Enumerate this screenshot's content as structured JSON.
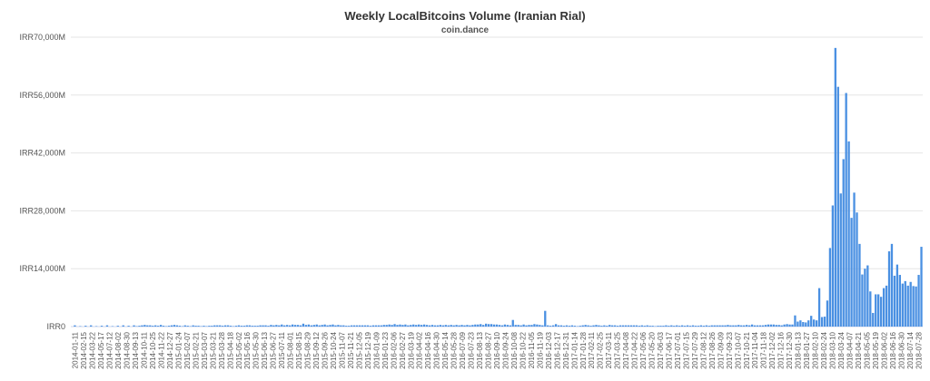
{
  "chart_data": {
    "type": "bar",
    "title": "Weekly LocalBitcoins Volume (Iranian Rial)",
    "subtitle": "coin.dance",
    "xlabel": "",
    "ylabel": "",
    "bar_color": "#4a90e2",
    "y_ticks": [
      "IRR0",
      "IRR14,000M",
      "IRR28,000M",
      "IRR42,000M",
      "IRR56,000M",
      "IRR70,000M"
    ],
    "ylim": [
      0,
      70000
    ],
    "y_units": "IRR millions",
    "x_tick_labels": [
      "2014-01-11",
      "2014-02-15",
      "2014-03-22",
      "2014-05-17",
      "2014-07-12",
      "2014-08-02",
      "2014-08-30",
      "2014-09-13",
      "2014-10-11",
      "2014-10-25",
      "2014-11-22",
      "2014-12-27",
      "2015-01-24",
      "2015-02-07",
      "2015-02-21",
      "2015-03-07",
      "2015-03-21",
      "2015-03-28",
      "2015-04-18",
      "2015-05-02",
      "2015-05-16",
      "2015-05-30",
      "2015-06-13",
      "2015-06-27",
      "2015-07-11",
      "2015-08-01",
      "2015-08-15",
      "2015-08-29",
      "2015-09-12",
      "2015-09-26",
      "2015-10-24",
      "2015-11-07",
      "2015-11-21",
      "2015-12-05",
      "2015-12-19",
      "2016-01-09",
      "2016-01-23",
      "2016-02-06",
      "2016-02-27",
      "2016-03-19",
      "2016-04-02",
      "2016-04-16",
      "2016-04-30",
      "2016-05-14",
      "2016-05-28",
      "2016-07-09",
      "2016-07-23",
      "2016-08-13",
      "2016-08-27",
      "2016-09-10",
      "2016-09-24",
      "2016-10-08",
      "2016-10-22",
      "2016-11-05",
      "2016-11-19",
      "2016-12-03",
      "2016-12-17",
      "2016-12-31",
      "2017-01-14",
      "2017-01-28",
      "2017-02-11",
      "2017-02-25",
      "2017-03-11",
      "2017-03-25",
      "2017-04-08",
      "2017-04-22",
      "2017-05-06",
      "2017-05-20",
      "2017-06-03",
      "2017-06-17",
      "2017-07-01",
      "2017-07-15",
      "2017-07-29",
      "2017-08-12",
      "2017-08-26",
      "2017-09-09",
      "2017-09-23",
      "2017-10-07",
      "2017-10-21",
      "2017-11-04",
      "2017-11-18",
      "2017-12-02",
      "2017-12-16",
      "2017-12-30",
      "2018-01-13",
      "2018-01-27",
      "2018-02-10",
      "2018-02-24",
      "2018-03-10",
      "2018-03-24",
      "2018-04-07",
      "2018-04-21",
      "2018-05-05",
      "2018-05-19",
      "2018-06-02",
      "2018-06-16",
      "2018-06-30",
      "2018-07-14",
      "2018-07-28"
    ],
    "values": [
      0,
      300,
      0,
      100,
      0,
      200,
      0,
      300,
      0,
      100,
      0,
      200,
      0,
      300,
      0,
      100,
      0,
      200,
      0,
      300,
      0,
      200,
      0,
      300,
      100,
      200,
      300,
      400,
      300,
      300,
      200,
      300,
      200,
      400,
      200,
      100,
      200,
      300,
      400,
      300,
      200,
      100,
      300,
      200,
      100,
      300,
      200,
      200,
      100,
      200,
      100,
      200,
      200,
      300,
      300,
      300,
      200,
      300,
      300,
      200,
      100,
      200,
      300,
      200,
      200,
      300,
      300,
      200,
      200,
      200,
      300,
      300,
      300,
      200,
      400,
      300,
      400,
      300,
      500,
      300,
      400,
      300,
      500,
      400,
      400,
      300,
      700,
      400,
      500,
      300,
      400,
      500,
      300,
      400,
      500,
      300,
      400,
      500,
      300,
      400,
      300,
      300,
      200,
      200,
      300,
      300,
      300,
      300,
      300,
      300,
      300,
      200,
      300,
      300,
      300,
      300,
      400,
      400,
      500,
      400,
      600,
      400,
      500,
      400,
      500,
      300,
      400,
      500,
      400,
      500,
      400,
      500,
      400,
      300,
      400,
      300,
      300,
      400,
      300,
      400,
      300,
      400,
      300,
      400,
      300,
      400,
      300,
      400,
      300,
      400,
      500,
      500,
      600,
      400,
      700,
      600,
      600,
      500,
      500,
      400,
      300,
      500,
      400,
      300,
      1600,
      400,
      400,
      300,
      500,
      300,
      400,
      400,
      600,
      500,
      400,
      300,
      3800,
      300,
      200,
      300,
      600,
      300,
      300,
      200,
      300,
      200,
      300,
      200,
      100,
      200,
      300,
      400,
      300,
      200,
      300,
      400,
      300,
      200,
      300,
      200,
      400,
      300,
      300,
      200,
      300,
      300,
      300,
      300,
      300,
      300,
      300,
      200,
      300,
      200,
      300,
      200,
      200,
      100,
      200,
      200,
      200,
      300,
      200,
      300,
      200,
      300,
      200,
      300,
      200,
      300,
      200,
      300,
      200,
      200,
      300,
      200,
      300,
      200,
      300,
      300,
      300,
      300,
      300,
      300,
      400,
      300,
      300,
      300,
      400,
      300,
      300,
      400,
      300,
      500,
      300,
      300,
      300,
      300,
      400,
      500,
      500,
      500,
      400,
      400,
      300,
      500,
      600,
      500,
      500,
      2700,
      1200,
      1500,
      1100,
      1000,
      1500,
      2600,
      1700,
      1500,
      9300,
      2300,
      2400,
      6300,
      19000,
      29300,
      67400,
      58000,
      32200,
      40500,
      56500,
      44800,
      26300,
      32400,
      27600,
      20000,
      12600,
      14000,
      14800,
      8500,
      3300,
      7800,
      7800,
      7200,
      9300,
      9900,
      18200,
      20000,
      12300,
      15000,
      12500,
      10400,
      11000,
      9900,
      10800,
      9800,
      9700,
      12500,
      19300
    ]
  }
}
